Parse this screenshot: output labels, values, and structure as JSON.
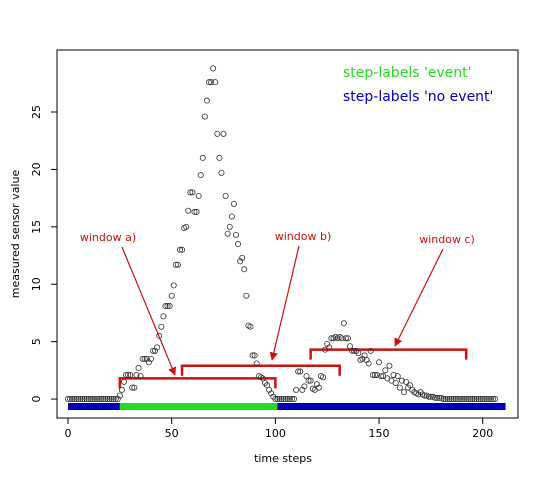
{
  "chart_data": {
    "type": "scatter",
    "x_label": "time steps",
    "y_label": "measured sensor value",
    "xlim": [
      -5.3,
      217
    ],
    "ylim": [
      -1.65,
      30.4
    ],
    "xticks": [
      0,
      50,
      100,
      150,
      200
    ],
    "yticks": [
      0,
      5,
      10,
      15,
      20,
      25
    ],
    "point_color": "#333333",
    "x": [
      0,
      1,
      2,
      3,
      4,
      5,
      6,
      7,
      8,
      9,
      10,
      11,
      12,
      13,
      14,
      15,
      16,
      17,
      18,
      19,
      20,
      21,
      22,
      23,
      24,
      25,
      26,
      27,
      28,
      29,
      30,
      31,
      32,
      33,
      34,
      35,
      36,
      37,
      38,
      39,
      40,
      41,
      42,
      43,
      44,
      45,
      46,
      47,
      48,
      49,
      50,
      51,
      52,
      53,
      54,
      55,
      56,
      57,
      58,
      59,
      60,
      61,
      62,
      63,
      64,
      65,
      66,
      67,
      68,
      69,
      70,
      71,
      72,
      73,
      74,
      75,
      76,
      77,
      78,
      79,
      80,
      81,
      82,
      83,
      84,
      85,
      86,
      87,
      88,
      89,
      90,
      91,
      92,
      93,
      94,
      95,
      96,
      97,
      98,
      99,
      100,
      101,
      102,
      103,
      104,
      105,
      106,
      107,
      108,
      109,
      110,
      111,
      112,
      113,
      114,
      115,
      116,
      117,
      118,
      119,
      120,
      121,
      122,
      123,
      124,
      125,
      126,
      127,
      128,
      129,
      130,
      131,
      132,
      133,
      134,
      135,
      136,
      137,
      138,
      139,
      140,
      141,
      142,
      143,
      144,
      145,
      146,
      147,
      148,
      149,
      150,
      151,
      152,
      153,
      154,
      155,
      156,
      157,
      158,
      159,
      160,
      161,
      162,
      163,
      164,
      165,
      166,
      167,
      168,
      169,
      170,
      171,
      172,
      173,
      174,
      175,
      176,
      177,
      178,
      179,
      180,
      181,
      182,
      183,
      184,
      185,
      186,
      187,
      188,
      189,
      190,
      191,
      192,
      193,
      194,
      195,
      196,
      197,
      198,
      199,
      200,
      201,
      202,
      203,
      204,
      205,
      206
    ],
    "values": [
      0,
      0,
      0,
      0,
      0,
      0,
      0,
      0,
      0,
      0,
      0,
      0,
      0,
      0,
      0,
      0,
      0,
      0,
      0,
      0,
      0,
      0,
      0,
      0,
      0,
      0.3,
      0.8,
      1.5,
      2.1,
      2.1,
      2.1,
      1.0,
      1.0,
      2.1,
      2.7,
      2.0,
      3.5,
      3.5,
      3.5,
      3.2,
      3.5,
      4.2,
      4.2,
      4.5,
      5.5,
      6.3,
      7.2,
      8.1,
      8.1,
      8.1,
      9.0,
      9.9,
      11.7,
      11.7,
      13.0,
      13.0,
      14.9,
      15.0,
      16.4,
      18.0,
      18.0,
      16.3,
      16.3,
      17.7,
      19.5,
      21.0,
      24.6,
      26.0,
      27.6,
      27.6,
      28.8,
      27.6,
      23.1,
      21.0,
      19.7,
      23.1,
      17.7,
      14.4,
      15.0,
      15.9,
      17.0,
      14.3,
      13.5,
      12.0,
      12.3,
      11.3,
      9.0,
      6.4,
      6.3,
      3.8,
      3.8,
      3.1,
      2.0,
      1.9,
      1.8,
      1.4,
      1.2,
      0.8,
      0.5,
      0.2,
      0,
      0,
      0,
      0,
      0,
      0,
      0,
      0,
      0,
      0,
      0.8,
      2.4,
      2.4,
      0.8,
      1.1,
      2.0,
      1.6,
      1.6,
      0.9,
      0.8,
      1.3,
      1.0,
      2.0,
      1.9,
      4.3,
      4.8,
      4.5,
      5.3,
      5.3,
      5.4,
      5.3,
      5.4,
      5.3,
      6.6,
      5.3,
      5.3,
      4.6,
      4.2,
      4.2,
      4.2,
      4.0,
      3.4,
      3.5,
      3.8,
      3.4,
      3.1,
      4.2,
      2.1,
      2.1,
      2.1,
      3.2,
      2.0,
      2.0,
      2.5,
      1.8,
      2.9,
      1.6,
      2.1,
      1.4,
      2.0,
      1.0,
      1.6,
      0.6,
      1.5,
      1.0,
      1.2,
      0.8,
      0.6,
      0.5,
      0.4,
      0.6,
      0.4,
      0.3,
      0.3,
      0.2,
      0.2,
      0.2,
      0.1,
      0.1,
      0.1,
      0.1,
      0,
      0,
      0,
      0,
      0,
      0,
      0,
      0,
      0,
      0,
      0,
      0,
      0,
      0,
      0,
      0,
      0,
      0,
      0,
      0,
      0,
      0,
      0,
      0,
      0,
      0
    ],
    "step_labels": [
      {
        "name": "step-labels 'event'",
        "color": "#22dd22",
        "segments": [
          [
            25,
            101
          ]
        ]
      },
      {
        "name": "step-labels 'no event'",
        "color": "#0000bb",
        "segments": [
          [
            0,
            25
          ],
          [
            101,
            211
          ]
        ]
      }
    ],
    "windows": [
      {
        "label": "window a)",
        "start": 25,
        "end": 100,
        "level": 1.8
      },
      {
        "label": "window b)",
        "start": 55,
        "end": 131,
        "level": 2.9
      },
      {
        "label": "window c)",
        "start": 117,
        "end": 192,
        "level": 4.3
      }
    ],
    "window_color": "#cc1111"
  }
}
